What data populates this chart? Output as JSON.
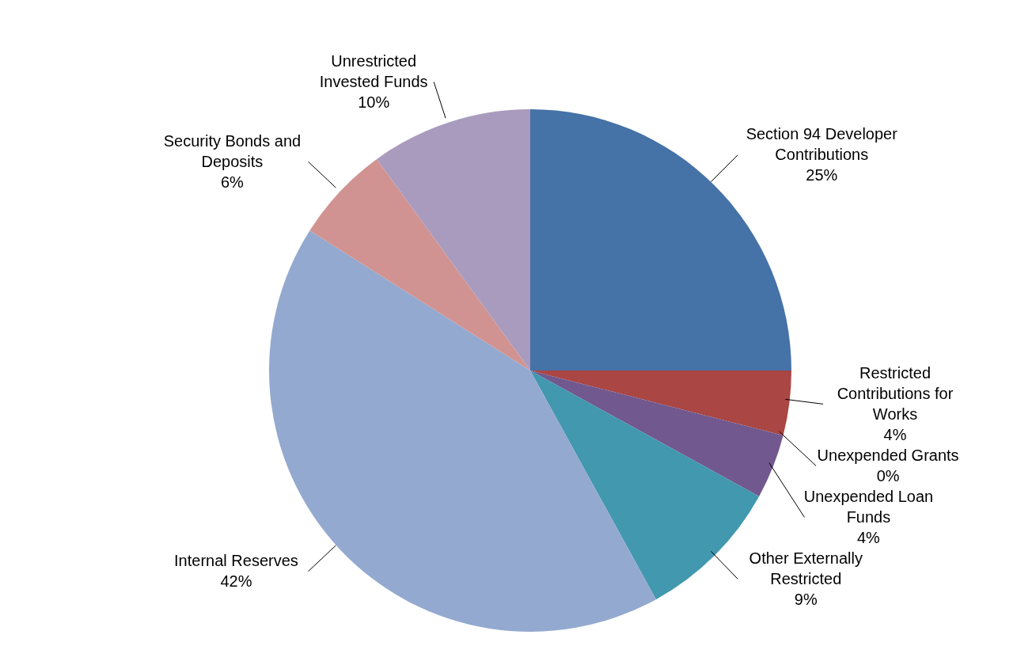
{
  "chart_data": {
    "type": "pie",
    "categories": [
      "Section 94 Developer Contributions",
      "Restricted Contributions for Works",
      "Unexpended Grants",
      "Unexpended Loan Funds",
      "Other Externally Restricted",
      "Internal Reserves",
      "Security Bonds and Deposits",
      "Unrestricted Invested Funds"
    ],
    "values": [
      25,
      4,
      0,
      4,
      9,
      42,
      6,
      10
    ],
    "value_labels": [
      "25%",
      "4%",
      "0%",
      "4%",
      "9%",
      "42%",
      "6%",
      "10%"
    ],
    "colors": [
      "#4572a7",
      "#aa4643",
      "#89a54e",
      "#71588f",
      "#4198af",
      "#93a9cf",
      "#d19392",
      "#a99bbd"
    ]
  }
}
